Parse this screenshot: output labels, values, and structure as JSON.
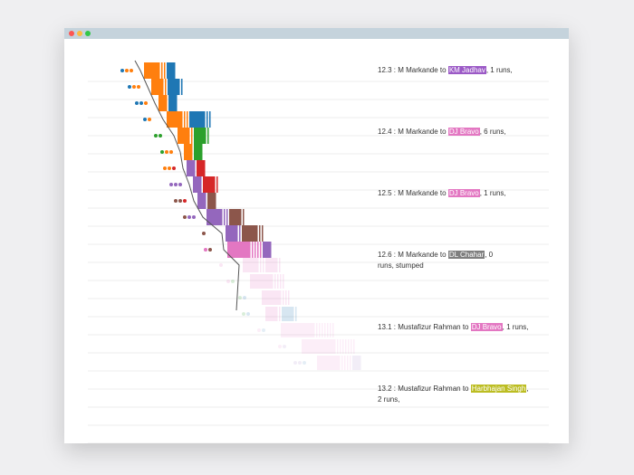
{
  "window": {
    "controls": [
      "close",
      "minimize",
      "maximize"
    ],
    "control_colors": [
      "#fc5753",
      "#fdbc40",
      "#33c748"
    ]
  },
  "colors": {
    "Jadhav": "#9b59c6",
    "Bravo": "#e377c2",
    "Chahar": "#7f7f7f",
    "Harbhajan": "#bcbd22",
    "blue": "#1f77b4",
    "orange": "#ff7f0e",
    "green": "#2ca02c",
    "red": "#d62728",
    "purple": "#9467bd",
    "brown": "#8c564b",
    "pink": "#e377c2"
  },
  "annotations": [
    {
      "prefix": "12.3 : M Markande to ",
      "batsman": "KM Jadhav",
      "suffix": ", 1 runs,",
      "color": "#9b59c6"
    },
    {
      "prefix": "12.4 : M Markande to ",
      "batsman": "DJ Bravo",
      "suffix": ", 6 runs,",
      "color": "#e377c2"
    },
    {
      "prefix": "12.5 : M Markande to ",
      "batsman": "DJ Bravo",
      "suffix": ", 1 runs,",
      "color": "#e377c2"
    },
    {
      "prefix": "12.6 : M Markande to ",
      "batsman": "DL Chahar",
      "suffix": ", 0 runs, stumped",
      "color": "#7f7f7f"
    },
    {
      "prefix": "13.1 : Mustafizur Rahman to ",
      "batsman": "DJ Bravo",
      "suffix": ", 1 runs,",
      "color": "#e377c2"
    },
    {
      "prefix": "13.2 : Mustafizur Rahman to ",
      "batsman": "Harbhajan Singh",
      "suffix": ", 2 runs,",
      "color": "#bcbd22"
    }
  ],
  "chart_data": {
    "type": "bar",
    "rows": [
      {
        "blocks": [
          {
            "c": "orange",
            "w": 3
          },
          {
            "c": "blue",
            "w": 1
          }
        ],
        "dots": [
          "blue",
          "orange",
          "orange"
        ],
        "alpha": 1
      },
      {
        "blocks": [
          {
            "c": "orange",
            "w": 2
          },
          {
            "c": "blue",
            "w": 2
          }
        ],
        "dots": [
          "blue",
          "orange",
          "orange"
        ],
        "alpha": 1
      },
      {
        "blocks": [
          {
            "c": "orange",
            "w": 1
          },
          {
            "c": "blue",
            "w": 1
          }
        ],
        "dots": [
          "blue",
          "blue",
          "orange"
        ],
        "alpha": 1
      },
      {
        "blocks": [
          {
            "c": "orange",
            "w": 3
          },
          {
            "c": "blue",
            "w": 3
          }
        ],
        "dots": [
          "blue",
          "orange"
        ],
        "alpha": 1
      },
      {
        "blocks": [
          {
            "c": "orange",
            "w": 2
          },
          {
            "c": "green",
            "w": 2
          }
        ],
        "dots": [
          "green",
          "green"
        ],
        "alpha": 1
      },
      {
        "blocks": [
          {
            "c": "orange",
            "w": 1
          },
          {
            "c": "green",
            "w": 1
          }
        ],
        "dots": [
          "green",
          "orange",
          "orange"
        ],
        "alpha": 1
      },
      {
        "blocks": [
          {
            "c": "purple",
            "w": 1
          },
          {
            "c": "red",
            "w": 1
          }
        ],
        "dots": [
          "orange",
          "orange",
          "red"
        ],
        "alpha": 1
      },
      {
        "blocks": [
          {
            "c": "purple",
            "w": 1
          },
          {
            "c": "red",
            "w": 2
          }
        ],
        "dots": [
          "purple",
          "purple",
          "purple"
        ],
        "alpha": 1
      },
      {
        "blocks": [
          {
            "c": "purple",
            "w": 1
          },
          {
            "c": "brown",
            "w": 1
          }
        ],
        "dots": [
          "brown",
          "brown",
          "red"
        ],
        "alpha": 1
      },
      {
        "blocks": [
          {
            "c": "purple",
            "w": 3
          },
          {
            "c": "brown",
            "w": 2
          }
        ],
        "dots": [
          "brown",
          "purple",
          "purple"
        ],
        "alpha": 1
      },
      {
        "blocks": [
          {
            "c": "purple",
            "w": 2
          },
          {
            "c": "brown",
            "w": 3
          }
        ],
        "dots": [
          "brown"
        ],
        "alpha": 1
      },
      {
        "blocks": [
          {
            "c": "pink",
            "w": 5
          },
          {
            "c": "purple",
            "w": 1
          }
        ],
        "dots": [
          "pink",
          "brown"
        ],
        "alpha": 1
      },
      {
        "blocks": [
          {
            "c": "pink",
            "w": 3
          },
          {
            "c": "bravo2",
            "w": 2
          }
        ],
        "dots": [
          "pink"
        ],
        "alpha": 0.18
      },
      {
        "blocks": [
          {
            "c": "pink",
            "w": 5
          }
        ],
        "dots": [
          "pink",
          "green"
        ],
        "alpha": 0.18
      },
      {
        "blocks": [
          {
            "c": "pink",
            "w": 4
          }
        ],
        "dots": [
          "green",
          "blue"
        ],
        "alpha": 0.18
      },
      {
        "blocks": [
          {
            "c": "pink",
            "w": 2
          },
          {
            "c": "blue",
            "w": 2
          }
        ],
        "dots": [
          "green",
          "blue"
        ],
        "alpha": 0.18
      },
      {
        "blocks": [
          {
            "c": "pink",
            "w": 8
          }
        ],
        "dots": [
          "pink",
          "blue"
        ],
        "alpha": 0.12
      },
      {
        "blocks": [
          {
            "c": "pink",
            "w": 8
          }
        ],
        "dots": [
          "pink",
          "purple"
        ],
        "alpha": 0.12
      },
      {
        "blocks": [
          {
            "c": "pink",
            "w": 5
          },
          {
            "c": "purple",
            "w": 1
          }
        ],
        "dots": [
          "purple",
          "purple",
          "blue"
        ],
        "alpha": 0.12
      }
    ]
  }
}
